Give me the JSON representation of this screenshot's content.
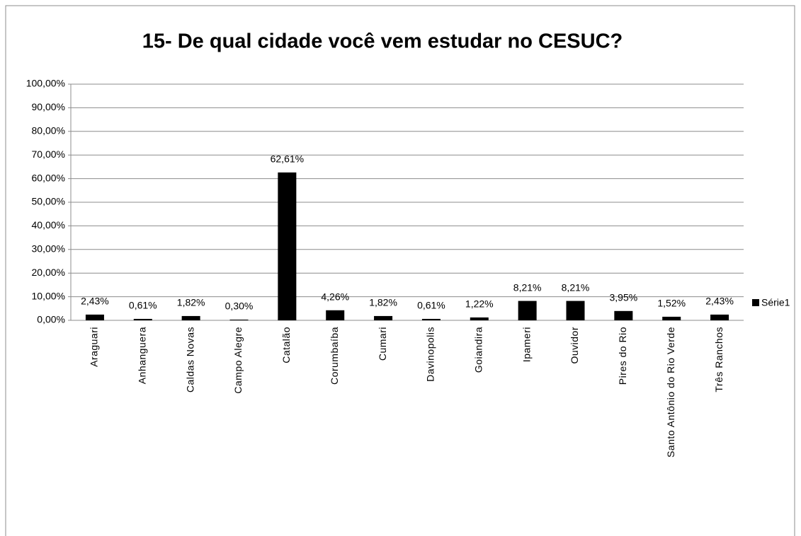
{
  "chart_data": {
    "type": "bar",
    "title": "15- De qual cidade você vem estudar no CESUC?",
    "categories": [
      "Araguari",
      "Anhanguera",
      "Caldas Novas",
      "Campo Alegre",
      "Catalão",
      "Corumbaíba",
      "Cumari",
      "Davinopolis",
      "Goiandira",
      "Ipameri",
      "Ouvidor",
      "Pires do Rio",
      "Santo Antônio do Rio Verde",
      "Três Ranchos"
    ],
    "series": [
      {
        "name": "Série1",
        "color": "#000000",
        "values": [
          2.43,
          0.61,
          1.82,
          0.3,
          62.61,
          4.26,
          1.82,
          0.61,
          1.22,
          8.21,
          8.21,
          3.95,
          1.52,
          2.43
        ],
        "value_labels": [
          "2,43%",
          "0,61%",
          "1,82%",
          "0,30%",
          "62,61%",
          "4,26%",
          "1,82%",
          "0,61%",
          "1,22%",
          "8,21%",
          "8,21%",
          "3,95%",
          "1,52%",
          "2,43%"
        ]
      }
    ],
    "ylim": [
      0,
      100
    ],
    "yticks": [
      {
        "value": 0,
        "label": "0,00%"
      },
      {
        "value": 10,
        "label": "10,00%"
      },
      {
        "value": 20,
        "label": "20,00%"
      },
      {
        "value": 30,
        "label": "30,00%"
      },
      {
        "value": 40,
        "label": "40,00%"
      },
      {
        "value": 50,
        "label": "50,00%"
      },
      {
        "value": 60,
        "label": "60,00%"
      },
      {
        "value": 70,
        "label": "70,00%"
      },
      {
        "value": 80,
        "label": "80,00%"
      },
      {
        "value": 90,
        "label": "90,00%"
      },
      {
        "value": 100,
        "label": "100,00%"
      }
    ],
    "grid": true,
    "legend": "right"
  }
}
